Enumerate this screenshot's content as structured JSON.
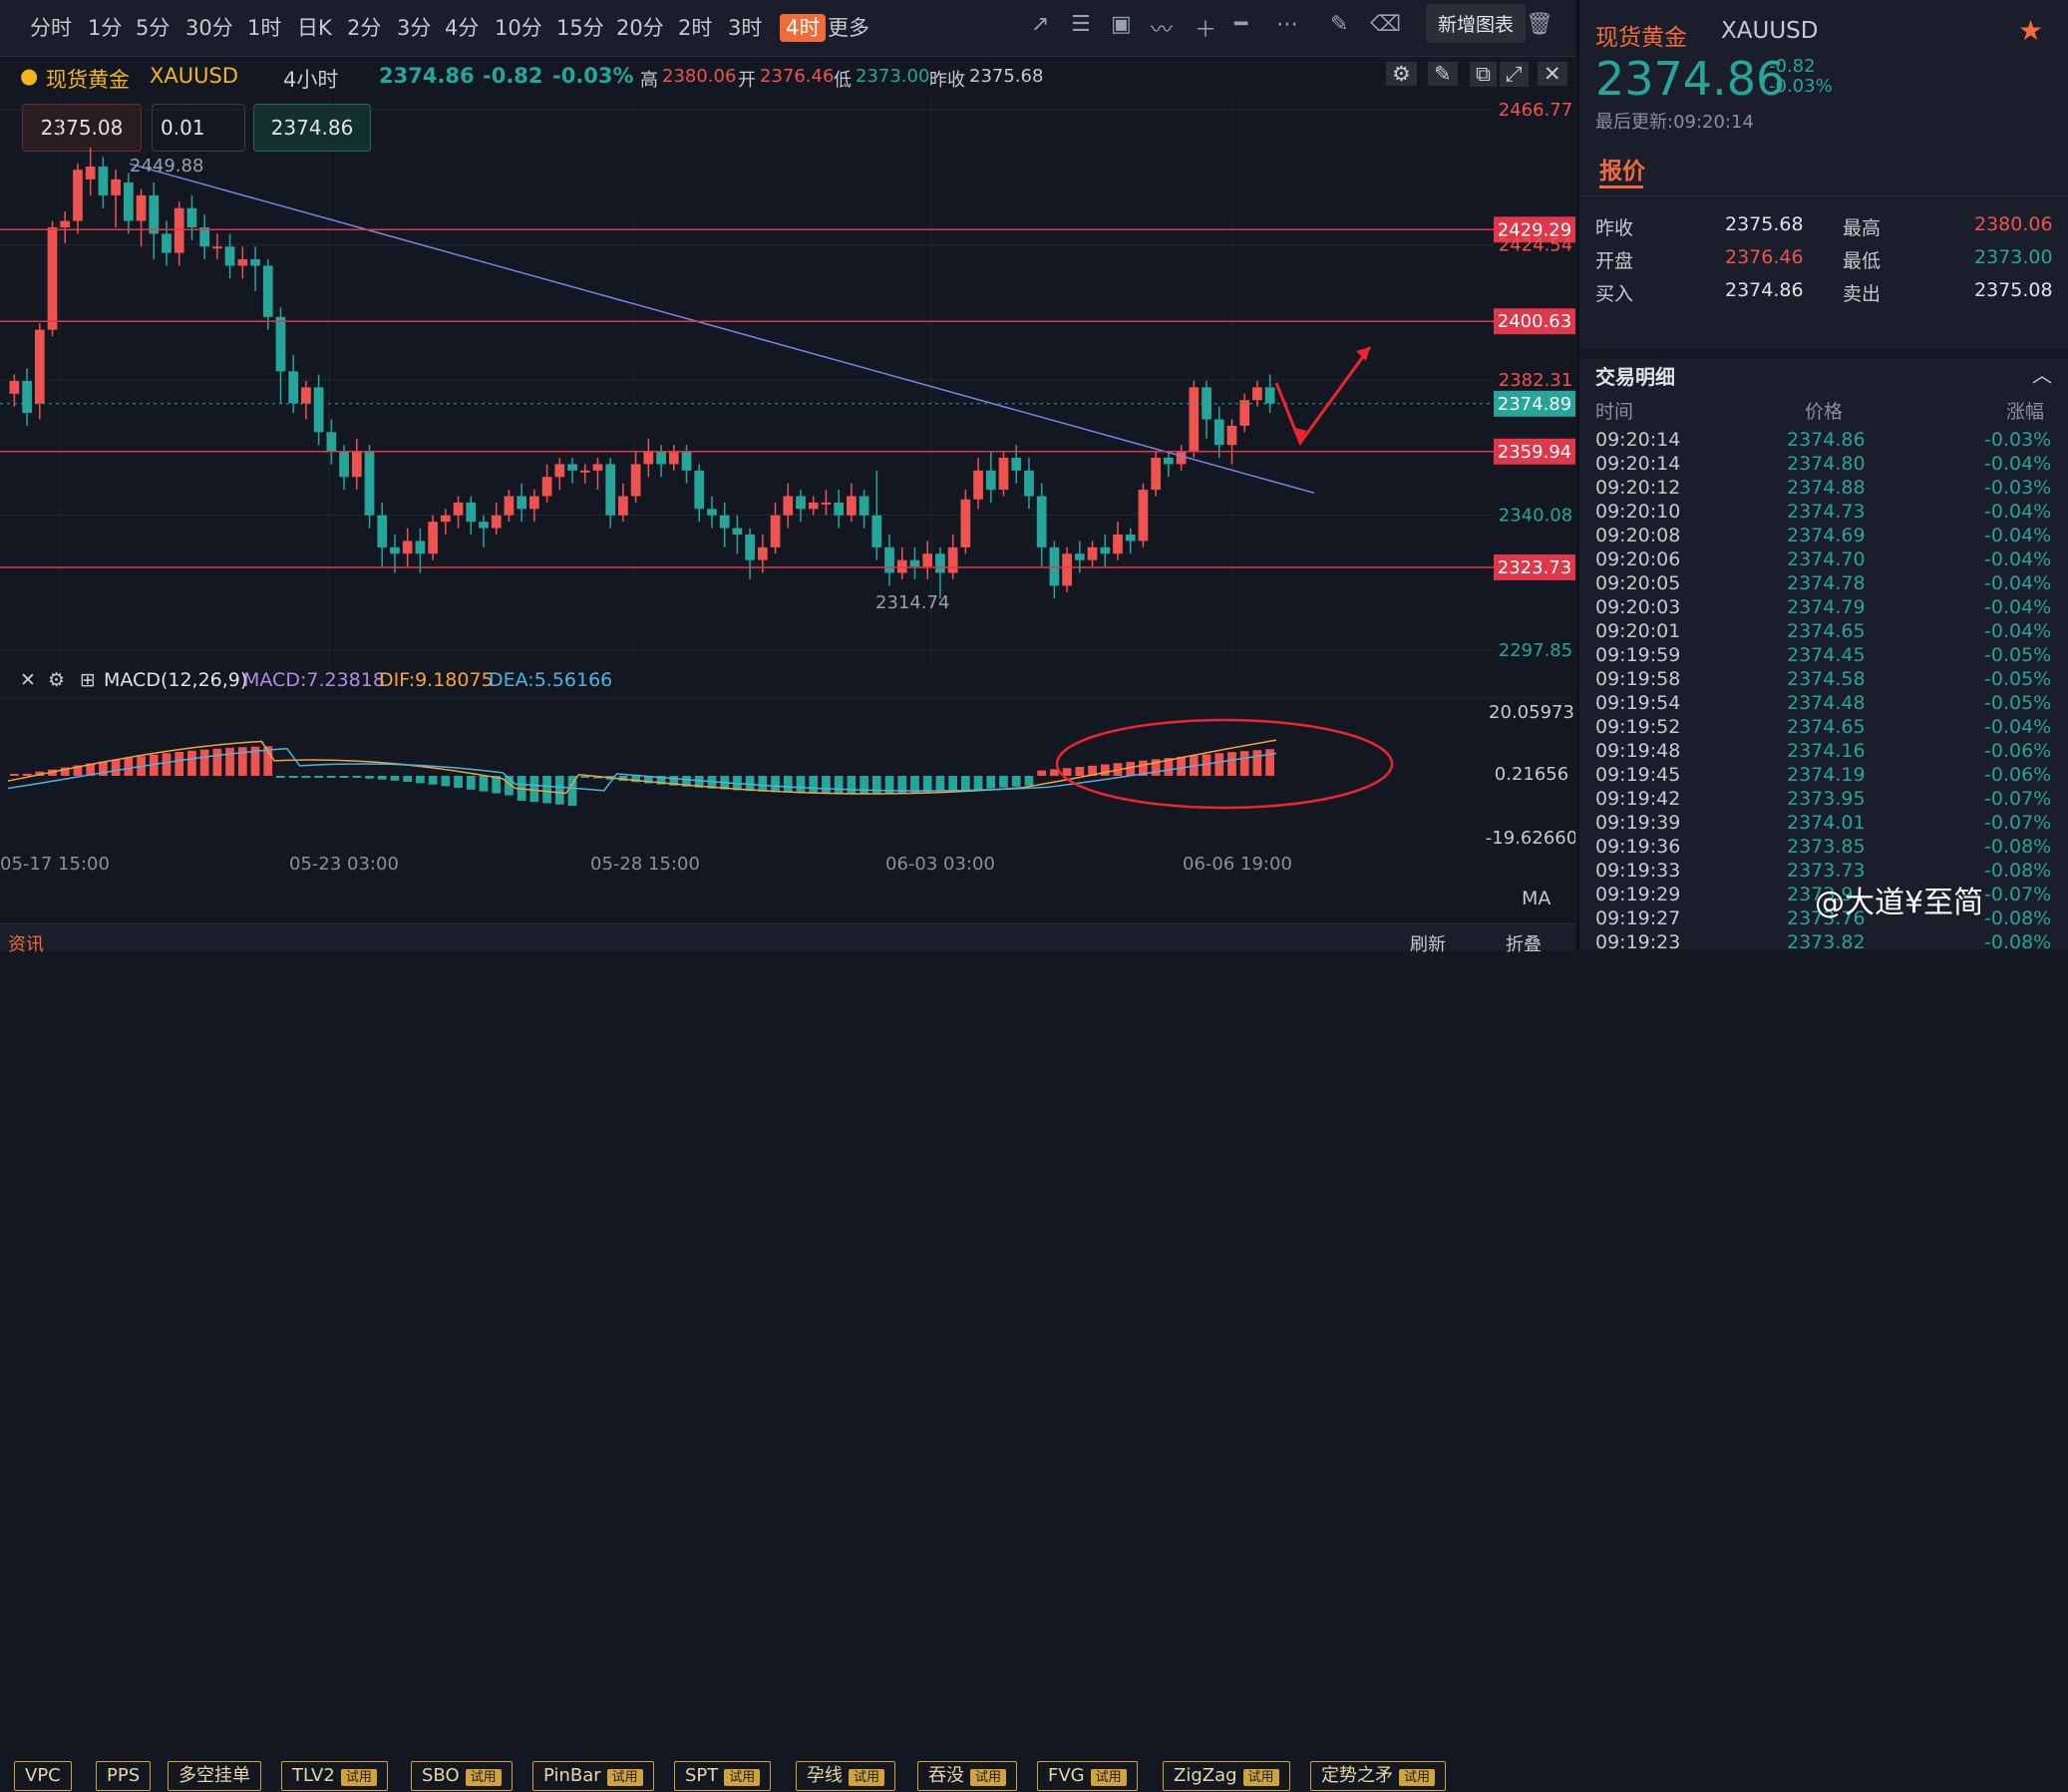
{
  "toolbar": {
    "timeframes": [
      "分时",
      "1分",
      "5分",
      "30分",
      "1时",
      "日K",
      "2分",
      "3分",
      "4分",
      "10分",
      "15分",
      "20分",
      "2时",
      "3时",
      "4时",
      "更多"
    ],
    "active": "4时",
    "tooltip": "新增图表"
  },
  "info": {
    "symbol": "现货黄金",
    "code": "XAUUSD",
    "interval": "4小时",
    "price": "2374.86",
    "change": "-0.82",
    "pct": "-0.03%",
    "high_label": "高",
    "high": "2380.06",
    "open_label": "开",
    "open": "2376.46",
    "low_label": "低",
    "low": "2373.00",
    "prev_label": "昨收",
    "prev": "2375.68"
  },
  "order": {
    "sell": "2375.08",
    "qty": "0.01",
    "buy": "2374.86"
  },
  "axis": {
    "right": [
      "2466.77",
      "2424.54",
      "2382.31",
      "2340.08",
      "2297.85"
    ],
    "levels": [
      "2429.29",
      "2400.63",
      "2359.94",
      "2323.73"
    ],
    "current": "2374.89",
    "high_mark": "2449.88",
    "low_mark": "2314.74",
    "dates": [
      "05-17 15:00",
      "05-23 03:00",
      "05-28 15:00",
      "06-03 03:00",
      "06-06 19:00"
    ],
    "macd_axis": [
      "20.05973",
      "0.21656",
      "-19.62660"
    ]
  },
  "macd": {
    "name": "MACD(12,26,9)",
    "macd": "MACD:7.23818",
    "dif": "DIF:9.18075",
    "dea": "DEA:5.56166"
  },
  "indicators": [
    {
      "label": "VPC",
      "trial": ""
    },
    {
      "label": "PPS",
      "trial": ""
    },
    {
      "label": "多空挂单",
      "trial": ""
    },
    {
      "label": "TLV2",
      "trial": "试用"
    },
    {
      "label": "SBO",
      "trial": "试用"
    },
    {
      "label": "PinBar",
      "trial": "试用"
    },
    {
      "label": "SPT",
      "trial": "试用"
    },
    {
      "label": "孕线",
      "trial": "试用"
    },
    {
      "label": "吞没",
      "trial": "试用"
    },
    {
      "label": "FVG",
      "trial": "试用"
    },
    {
      "label": "ZigZag",
      "trial": "试用"
    },
    {
      "label": "定势之矛",
      "trial": "试用"
    }
  ],
  "bottom": {
    "ma": "MA",
    "news": "资讯",
    "refresh": "刷新",
    "collapse": "折叠"
  },
  "panel": {
    "name": "现货黄金",
    "code": "XAUUSD",
    "price": "2374.86",
    "change": "-0.82",
    "pct": "-0.03%",
    "updated": "最后更新:09:20:14",
    "tab": "报价",
    "q": {
      "prev_l": "昨收",
      "prev": "2375.68",
      "high_l": "最高",
      "high": "2380.06",
      "open_l": "开盘",
      "open": "2376.46",
      "low_l": "最低",
      "low": "2373.00",
      "bid_l": "买入",
      "bid": "2374.86",
      "ask_l": "卖出",
      "ask": "2375.08"
    },
    "trades_title": "交易明细",
    "cols": [
      "时间",
      "价格",
      "涨幅"
    ],
    "trades": [
      [
        "09:20:14",
        "2374.86",
        "-0.03%"
      ],
      [
        "09:20:14",
        "2374.80",
        "-0.04%"
      ],
      [
        "09:20:12",
        "2374.88",
        "-0.03%"
      ],
      [
        "09:20:10",
        "2374.73",
        "-0.04%"
      ],
      [
        "09:20:08",
        "2374.69",
        "-0.04%"
      ],
      [
        "09:20:06",
        "2374.70",
        "-0.04%"
      ],
      [
        "09:20:05",
        "2374.78",
        "-0.04%"
      ],
      [
        "09:20:03",
        "2374.79",
        "-0.04%"
      ],
      [
        "09:20:01",
        "2374.65",
        "-0.04%"
      ],
      [
        "09:19:59",
        "2374.45",
        "-0.05%"
      ],
      [
        "09:19:58",
        "2374.58",
        "-0.05%"
      ],
      [
        "09:19:54",
        "2374.48",
        "-0.05%"
      ],
      [
        "09:19:52",
        "2374.65",
        "-0.04%"
      ],
      [
        "09:19:48",
        "2374.16",
        "-0.06%"
      ],
      [
        "09:19:45",
        "2374.19",
        "-0.06%"
      ],
      [
        "09:19:42",
        "2373.95",
        "-0.07%"
      ],
      [
        "09:19:39",
        "2374.01",
        "-0.07%"
      ],
      [
        "09:19:36",
        "2373.85",
        "-0.08%"
      ],
      [
        "09:19:33",
        "2373.73",
        "-0.08%"
      ],
      [
        "09:19:29",
        "2373.9",
        "-0.07%"
      ],
      [
        "09:19:27",
        "2373.76",
        "-0.08%"
      ],
      [
        "09:19:23",
        "2373.82",
        "-0.08%"
      ]
    ],
    "watermark": "@大道¥至简"
  },
  "colors": {
    "up": "#ef5350",
    "down": "#26a69a",
    "accent": "#f26b3a"
  }
}
